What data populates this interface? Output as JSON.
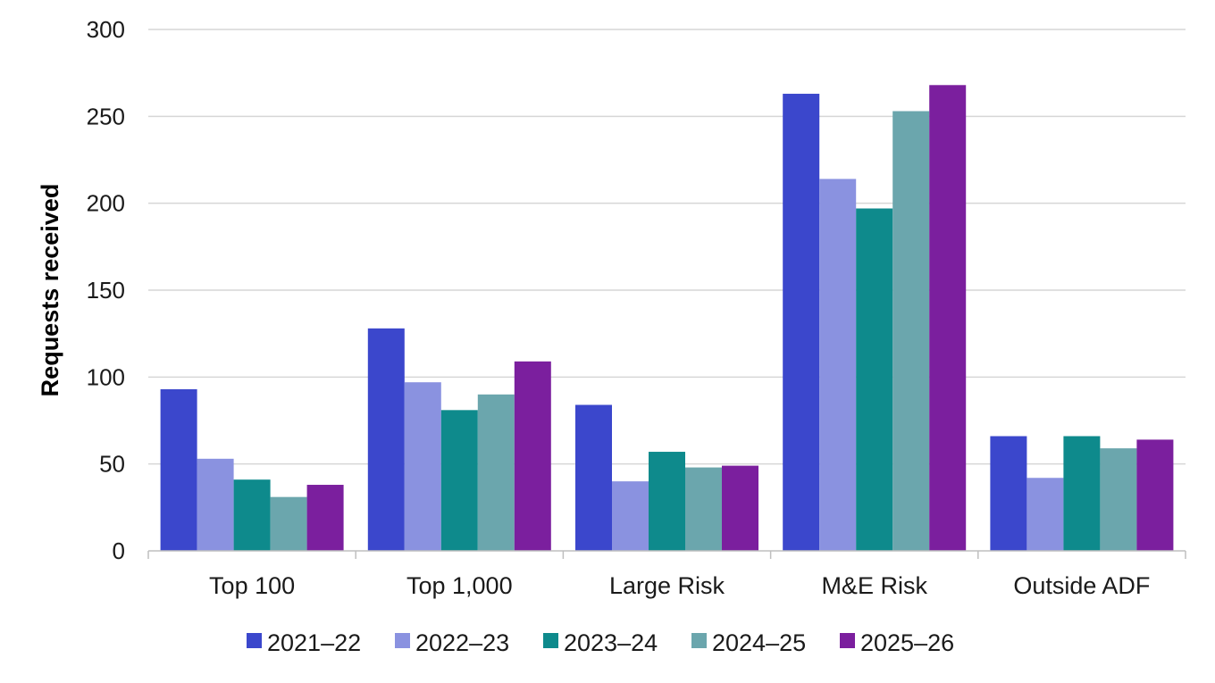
{
  "chart_data": {
    "type": "bar",
    "title": "",
    "xlabel": "",
    "ylabel": "Requests received",
    "ylim": [
      0,
      300
    ],
    "yticks": [
      0,
      50,
      100,
      150,
      200,
      250,
      300
    ],
    "grid": true,
    "legend_position": "bottom",
    "categories": [
      "Top 100",
      "Top 1,000",
      "Large Risk",
      "M&E Risk",
      "Outside ADF"
    ],
    "series": [
      {
        "name": "2021–22",
        "color": "#3b47cc",
        "values": [
          93,
          128,
          84,
          263,
          66
        ]
      },
      {
        "name": "2022–23",
        "color": "#8a92e0",
        "values": [
          53,
          97,
          40,
          214,
          42
        ]
      },
      {
        "name": "2023–24",
        "color": "#0e8a8c",
        "values": [
          41,
          81,
          57,
          197,
          66
        ]
      },
      {
        "name": "2024–25",
        "color": "#6ba6ad",
        "values": [
          31,
          90,
          48,
          253,
          59
        ]
      },
      {
        "name": "2025–26",
        "color": "#7b1f9e",
        "values": [
          38,
          109,
          49,
          268,
          64
        ]
      }
    ]
  }
}
